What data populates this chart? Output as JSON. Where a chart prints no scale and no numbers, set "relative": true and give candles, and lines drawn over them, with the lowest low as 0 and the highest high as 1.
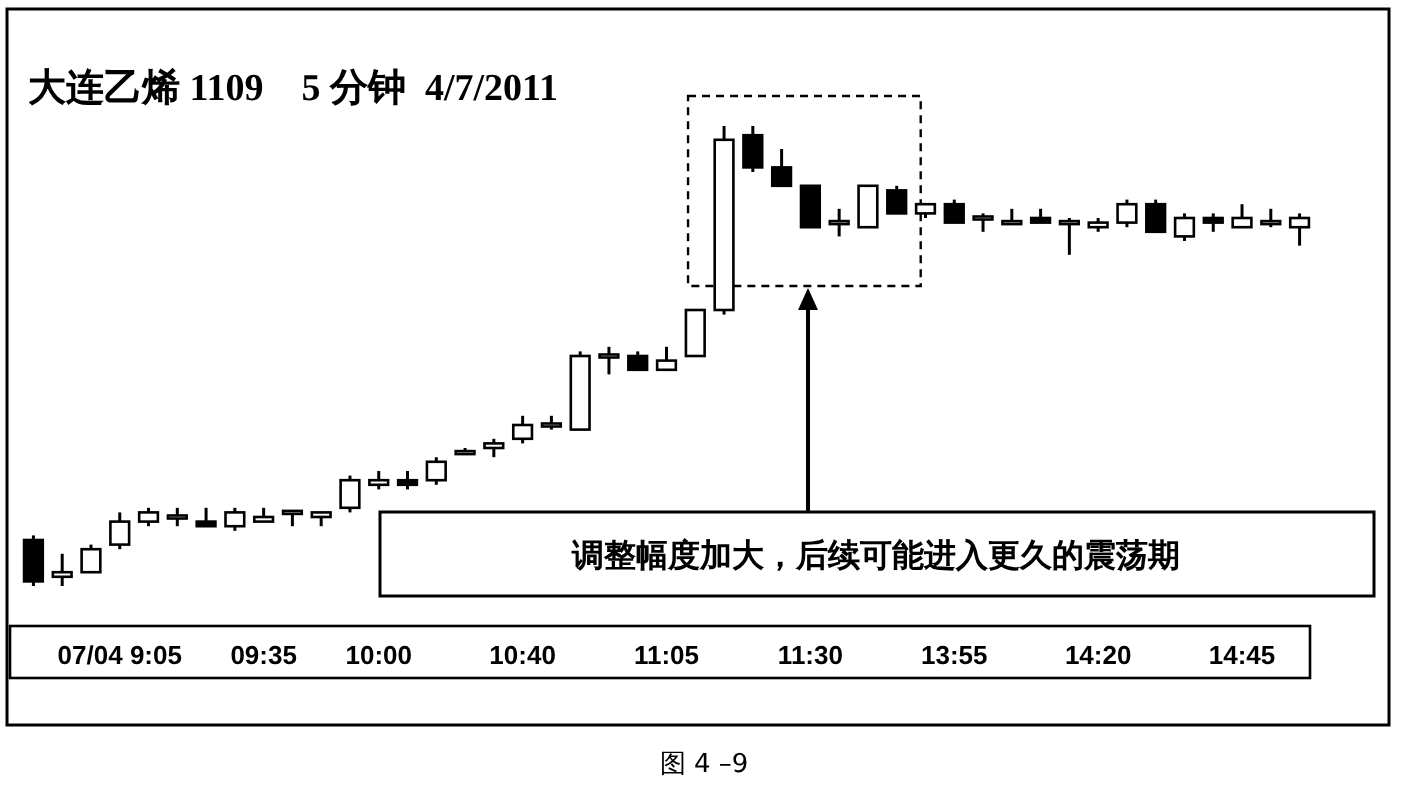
{
  "chart_data": {
    "type": "candlestick",
    "title": "大连乙烯 1109    5 分钟  4/7/2011",
    "relative": true,
    "categories": [
      null,
      null,
      null,
      "07/04 9:05",
      null,
      null,
      null,
      null,
      "09:35",
      null,
      null,
      null,
      "10:00",
      null,
      null,
      null,
      null,
      "10:40",
      null,
      null,
      null,
      null,
      "11:05",
      null,
      null,
      null,
      null,
      "11:30",
      null,
      null,
      null,
      null,
      "13:55",
      null,
      null,
      null,
      null,
      "14:20",
      null,
      null,
      null,
      null,
      "14:45",
      null,
      null
    ],
    "ohlc": [
      [
        0.1,
        0.11,
        0,
        0.01
      ],
      [
        0.02,
        0.07,
        0.0,
        0.03
      ],
      [
        0.03,
        0.09,
        0.03,
        0.08
      ],
      [
        0.09,
        0.16,
        0.08,
        0.14
      ],
      [
        0.14,
        0.17,
        0.13,
        0.16
      ],
      [
        0.15,
        0.17,
        0.13,
        0.15
      ],
      [
        0.14,
        0.17,
        0.13,
        0.13
      ],
      [
        0.13,
        0.17,
        0.12,
        0.16
      ],
      [
        0.14,
        0.17,
        0.14,
        0.15
      ],
      [
        0.16,
        0.16,
        0.13,
        0.16
      ],
      [
        0.15,
        0.16,
        0.13,
        0.16
      ],
      [
        0.17,
        0.24,
        0.16,
        0.23
      ],
      [
        0.22,
        0.25,
        0.21,
        0.23
      ],
      [
        0.23,
        0.25,
        0.21,
        0.22
      ],
      [
        0.23,
        0.28,
        0.22,
        0.27
      ],
      [
        0.29,
        0.3,
        0.29,
        0.29
      ],
      [
        0.3,
        0.32,
        0.28,
        0.31
      ],
      [
        0.32,
        0.37,
        0.31,
        0.35
      ],
      [
        0.35,
        0.37,
        0.34,
        0.35
      ],
      [
        0.34,
        0.51,
        0.34,
        0.5
      ],
      [
        0.5,
        0.52,
        0.46,
        0.5
      ],
      [
        0.5,
        0.51,
        0.47,
        0.47
      ],
      [
        0.47,
        0.52,
        0.47,
        0.49
      ],
      [
        0.5,
        0.6,
        0.5,
        0.6
      ],
      [
        0.6,
        1.0,
        0.59,
        0.97
      ],
      [
        0.98,
        1.0,
        0.9,
        0.91
      ],
      [
        0.91,
        0.95,
        0.87,
        0.87
      ],
      [
        0.87,
        0.87,
        0.78,
        0.78
      ],
      [
        0.79,
        0.82,
        0.76,
        0.79
      ],
      [
        0.78,
        0.87,
        0.78,
        0.87
      ],
      [
        0.86,
        0.87,
        0.81,
        0.81
      ],
      [
        0.81,
        0.83,
        0.8,
        0.83
      ],
      [
        0.83,
        0.84,
        0.79,
        0.79
      ],
      [
        0.8,
        0.81,
        0.77,
        0.8
      ],
      [
        0.79,
        0.82,
        0.79,
        0.79
      ],
      [
        0.8,
        0.82,
        0.79,
        0.79
      ],
      [
        0.79,
        0.8,
        0.72,
        0.79
      ],
      [
        0.78,
        0.8,
        0.77,
        0.79
      ],
      [
        0.79,
        0.84,
        0.78,
        0.83
      ],
      [
        0.83,
        0.84,
        0.77,
        0.77
      ],
      [
        0.76,
        0.81,
        0.75,
        0.8
      ],
      [
        0.8,
        0.81,
        0.77,
        0.79
      ],
      [
        0.78,
        0.83,
        0.78,
        0.8
      ],
      [
        0.79,
        0.82,
        0.78,
        0.79
      ],
      [
        0.78,
        0.81,
        0.74,
        0.8
      ]
    ],
    "annotations": [
      "调整幅度加大，后续可能进入更久的震荡期",
      "图 4 –9"
    ]
  }
}
